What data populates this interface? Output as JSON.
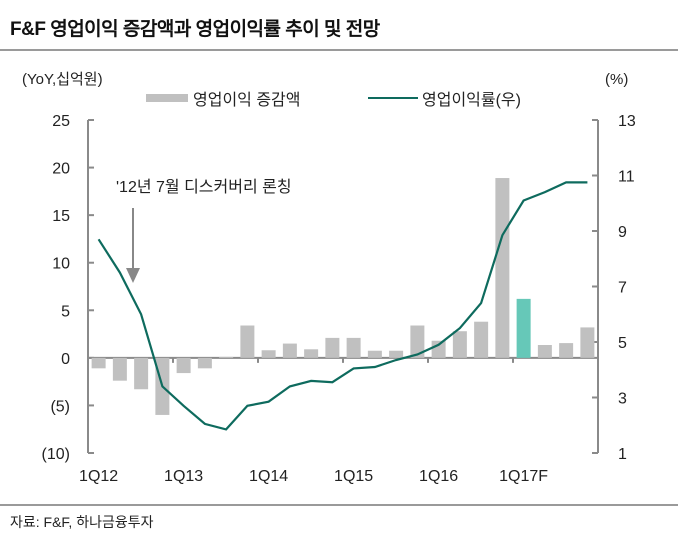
{
  "title": "F&F 영업이익 증감액과 영업이익률 추이 및 전망",
  "source": "자료: F&F, 하나금융투자",
  "chart_data": {
    "type": "bar+line",
    "title": "F&F 영업이익 증감액과 영업이익률 추이 및 전망",
    "ylabel_left": "(YoY,십억원)",
    "ylabel_right": "(%)",
    "ylim_left": [
      -10,
      25
    ],
    "ylim_right": [
      1,
      13
    ],
    "yticks_left": [
      25,
      20,
      15,
      10,
      5,
      0,
      -5,
      -10
    ],
    "ytick_labels_left": [
      "25",
      "20",
      "15",
      "10",
      "5",
      "0",
      "(5)",
      "(10)"
    ],
    "yticks_right": [
      13,
      11,
      9,
      7,
      5,
      3,
      1
    ],
    "ytick_labels_right": [
      "13",
      "11",
      "9",
      "7",
      "5",
      "3",
      "1"
    ],
    "categories": [
      "1Q12",
      "2Q12",
      "3Q12",
      "4Q12",
      "1Q13",
      "2Q13",
      "3Q13",
      "4Q13",
      "1Q14",
      "2Q14",
      "3Q14",
      "4Q14",
      "1Q15",
      "2Q15",
      "3Q15",
      "4Q15",
      "1Q16",
      "2Q16",
      "3Q16",
      "4Q16",
      "1Q17F",
      "2Q17F",
      "3Q17F",
      "4Q17F"
    ],
    "x_tick_labels": [
      "1Q12",
      "1Q13",
      "1Q14",
      "1Q15",
      "1Q16",
      "1Q17F"
    ],
    "legend_position": "top",
    "grid": false,
    "series": [
      {
        "name": "영업이익 증감액",
        "type": "bar",
        "axis": "left",
        "color": "#c0c0c0",
        "highlight_color": "#66c8b8",
        "highlight_index": 20,
        "values": [
          -1.1,
          -2.4,
          -3.3,
          -6.0,
          -1.6,
          -1.1,
          0.1,
          3.4,
          0.8,
          1.5,
          0.9,
          2.1,
          2.1,
          0.75,
          0.75,
          3.4,
          1.8,
          2.8,
          3.8,
          18.9,
          6.2,
          1.35,
          1.55,
          3.2
        ]
      },
      {
        "name": "영업이익률(우)",
        "type": "line",
        "axis": "right",
        "color": "#0e6b5e",
        "values": [
          8.7,
          7.5,
          6.0,
          3.4,
          2.7,
          2.05,
          1.85,
          2.7,
          2.85,
          3.4,
          3.6,
          3.55,
          4.05,
          4.1,
          4.35,
          4.55,
          4.9,
          5.5,
          6.4,
          8.85,
          10.1,
          10.4,
          10.75,
          10.75
        ]
      }
    ],
    "annotation": {
      "text": "'12년 7월 디스커버리 론칭",
      "target_category": "3Q12"
    }
  }
}
